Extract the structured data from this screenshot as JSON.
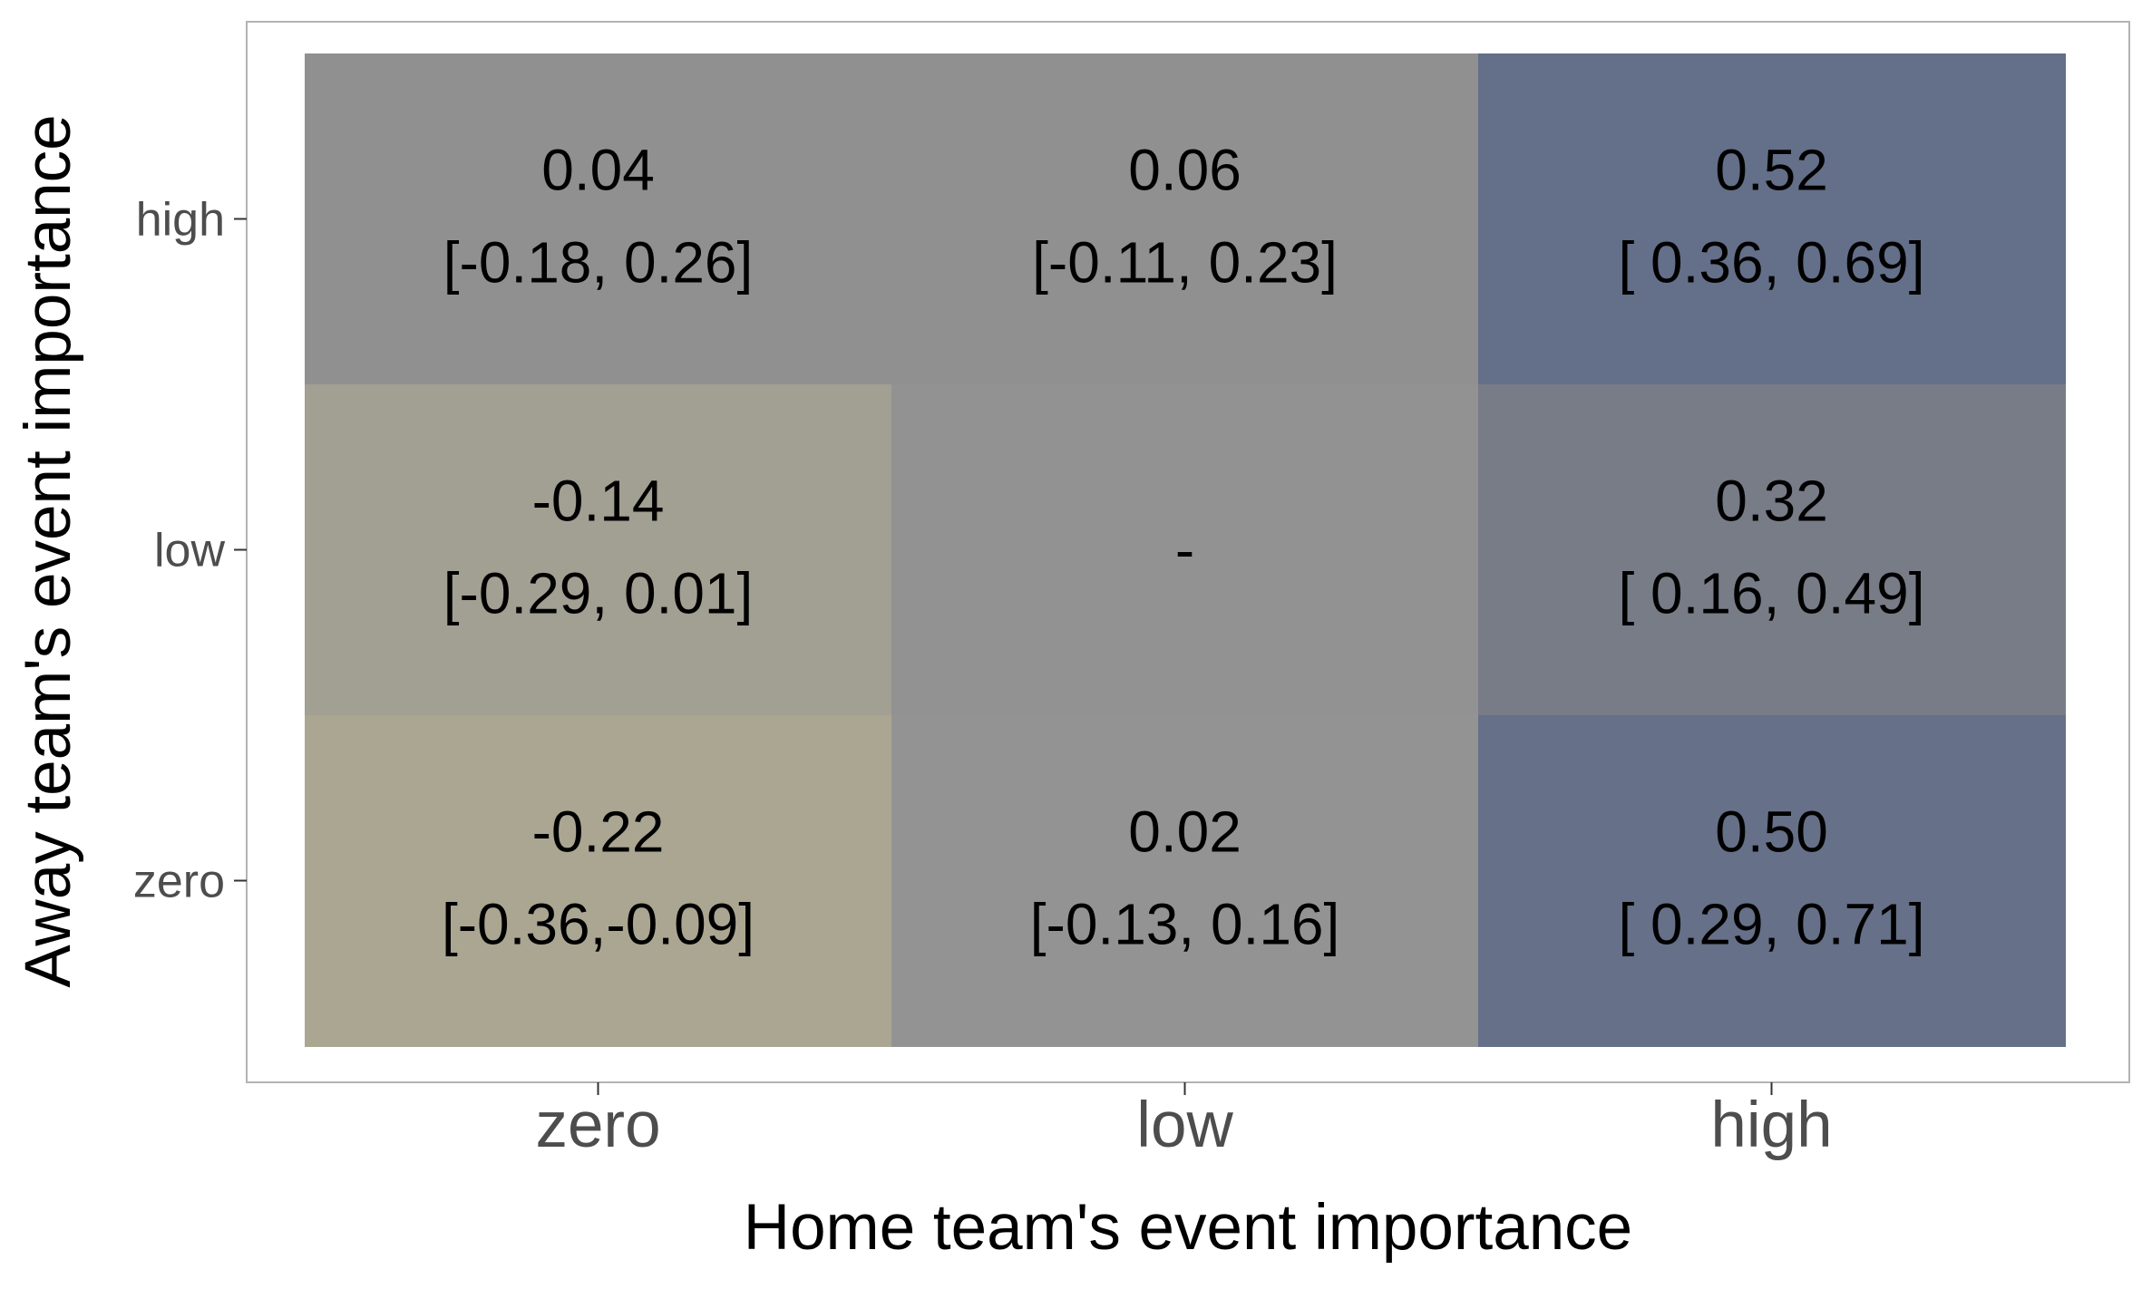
{
  "chart_data": {
    "type": "heatmap",
    "xlabel": "Home team's event importance",
    "ylabel": "Away team's event importance",
    "x_categories": [
      "zero",
      "low",
      "high"
    ],
    "y_categories": [
      "zero",
      "low",
      "high"
    ],
    "grid": false,
    "cells": [
      {
        "x": "zero",
        "y": "high",
        "value": 0.04,
        "value_label": "0.04",
        "ci_label": "[-0.18, 0.26]",
        "color": "#909090"
      },
      {
        "x": "low",
        "y": "high",
        "value": 0.06,
        "value_label": "0.06",
        "ci_label": "[-0.11, 0.23]",
        "color": "#909090"
      },
      {
        "x": "high",
        "y": "high",
        "value": 0.52,
        "value_label": "0.52",
        "ci_label": "[ 0.36, 0.69]",
        "color": "#646F89"
      },
      {
        "x": "zero",
        "y": "low",
        "value": -0.14,
        "value_label": "-0.14",
        "ci_label": "[-0.29, 0.01]",
        "color": "#A29F93"
      },
      {
        "x": "low",
        "y": "low",
        "value": null,
        "value_label": "-",
        "ci_label": "",
        "color": "#929292"
      },
      {
        "x": "high",
        "y": "low",
        "value": 0.32,
        "value_label": "0.32",
        "ci_label": "[ 0.16, 0.49]",
        "color": "#787C87"
      },
      {
        "x": "zero",
        "y": "zero",
        "value": -0.22,
        "value_label": "-0.22",
        "ci_label": "[-0.36,-0.09]",
        "color": "#AAA692"
      },
      {
        "x": "low",
        "y": "zero",
        "value": 0.02,
        "value_label": "0.02",
        "ci_label": "[-0.13, 0.16]",
        "color": "#939393"
      },
      {
        "x": "high",
        "y": "zero",
        "value": 0.5,
        "value_label": "0.50",
        "ci_label": "[ 0.29, 0.71]",
        "color": "#667088"
      }
    ],
    "colors": {
      "axis_text": "#4D4D4D",
      "axis_title": "#000000",
      "tick": "#333333",
      "panel_border": "#B3B3B3",
      "cell_text": "#000000"
    }
  }
}
